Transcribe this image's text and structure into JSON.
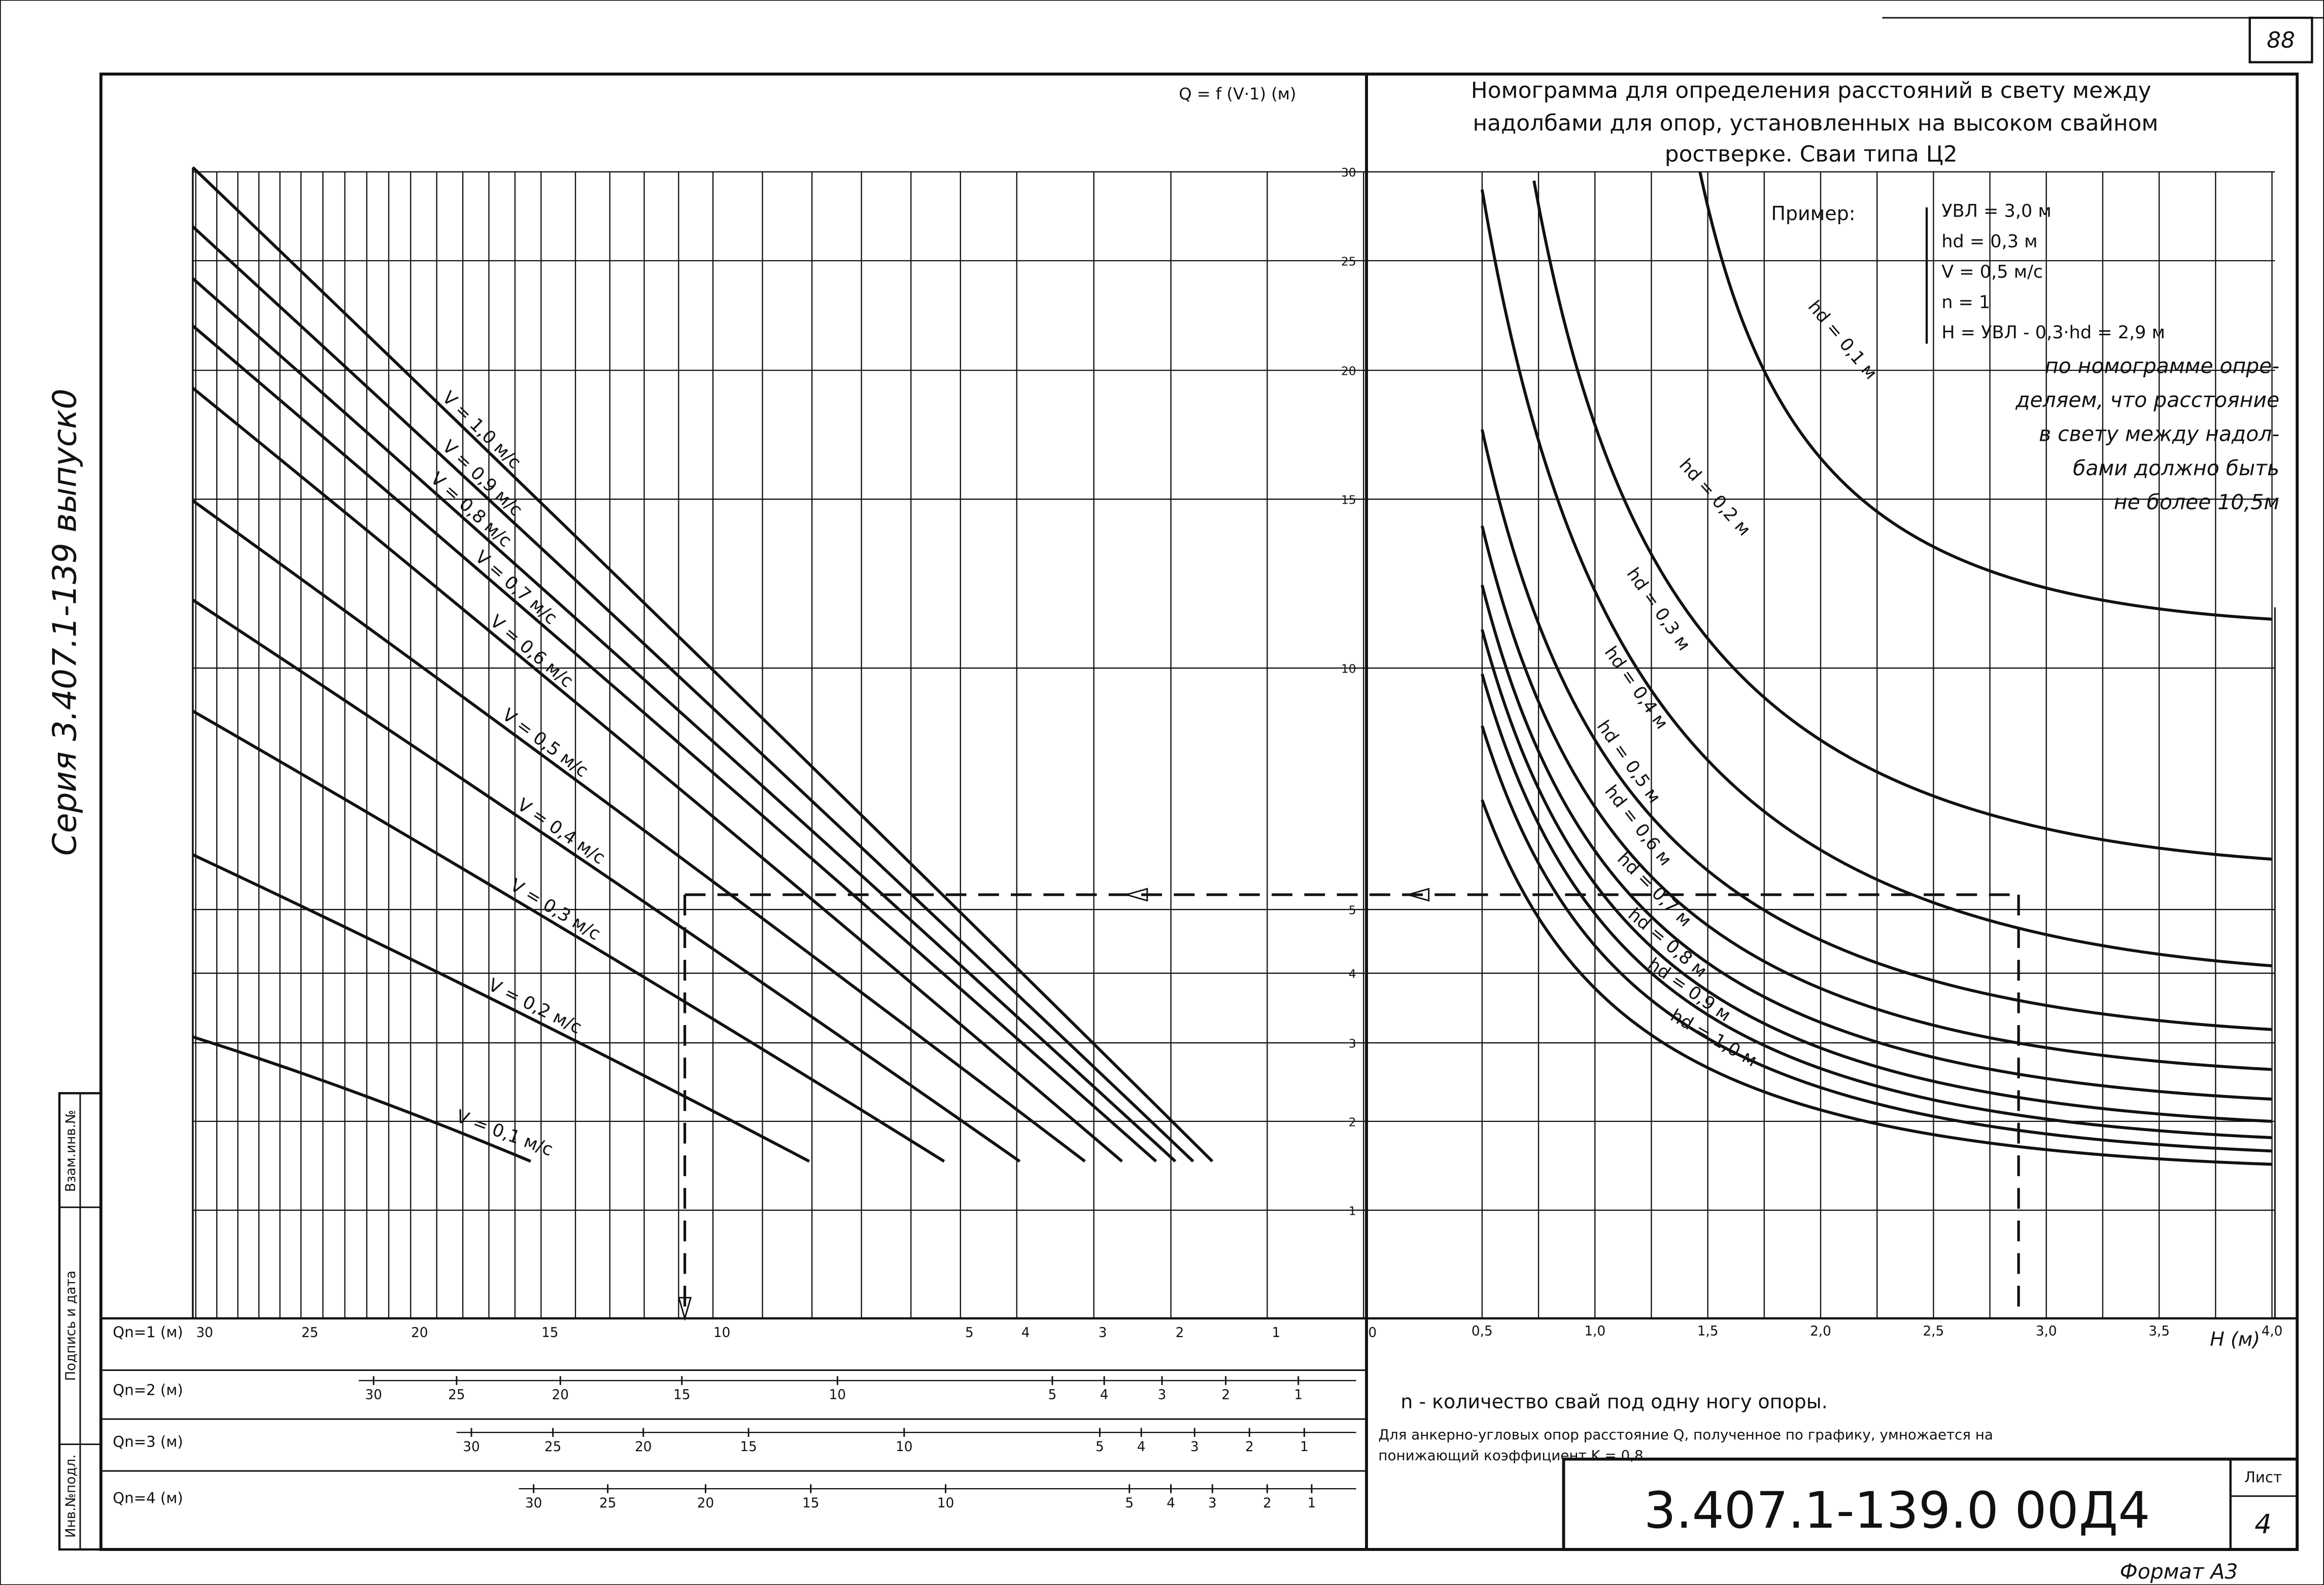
{
  "page_number": "88",
  "side_title": "Серия 3.407.1-139 выпуск0",
  "stamp": [
    "Взам.инв.№",
    "Подпись и дата",
    "Инв.№подл."
  ],
  "left_chart": {
    "formula": "Q = f (V·1) (м)",
    "y_ticks": [
      "30",
      "25",
      "20",
      "15",
      "10",
      "5",
      "4",
      "3",
      "2",
      "1"
    ],
    "curves": [
      "V = 1,0 м/с",
      "V = 0,9 м/с",
      "V = 0,8 м/с",
      "V = 0,7 м/с",
      "V = 0,6 м/с",
      "V = 0,5 м/с",
      "V = 0,4 м/с",
      "V = 0,3 м/с",
      "V = 0,2 м/с",
      "V = 0,1 м/с"
    ]
  },
  "right_chart": {
    "title_lines": [
      "Номограмма для определения расстояний в свету между",
      "надолбами для опор, установленных на высоком свайном",
      "ростверке. Сваи типа Ц2"
    ],
    "curves": [
      "hd = 0,1 м",
      "hd = 0,2 м",
      "hd = 0,3 м",
      "hd = 0,4 м",
      "hd = 0,5 м",
      "hd = 0,6 м",
      "hd = 0,7 м",
      "hd = 0,8 м",
      "hd = 0,9 м",
      "hd = 1,0 м"
    ],
    "x_ticks": [
      "0,5",
      "1,0",
      "1,5",
      "2,0",
      "2,5",
      "3,0",
      "3,5",
      "4,0"
    ],
    "x_label": "H (м)"
  },
  "example": {
    "heading": "Пример:",
    "lines": [
      "УВЛ = 3,0 м",
      "hd = 0,3 м",
      "V = 0,5 м/с",
      "n = 1",
      "H = УВЛ - 0,3·hd = 2,9 м"
    ],
    "conclusion": [
      "по номограмме опре-",
      "деляем, что расстояние",
      "в свету между надол-",
      "бами должно быть",
      "не более 10,5м"
    ]
  },
  "scales": [
    {
      "label": "Qn=1 (м)",
      "ticks": [
        "30",
        "25",
        "20",
        "15",
        "10",
        "5",
        "4",
        "3",
        "2",
        "1",
        "0"
      ]
    },
    {
      "label": "Qn=2 (м)",
      "ticks": [
        "30",
        "25",
        "20",
        "15",
        "10",
        "5",
        "4",
        "3",
        "2",
        "1"
      ]
    },
    {
      "label": "Qn=3 (м)",
      "ticks": [
        "30",
        "25",
        "20",
        "15",
        "10",
        "5",
        "4",
        "3",
        "2",
        "1"
      ]
    },
    {
      "label": "Qn=4 (м)",
      "ticks": [
        "30",
        "25",
        "20",
        "15",
        "10",
        "5",
        "4",
        "3",
        "2",
        "1"
      ]
    }
  ],
  "notes": [
    "n - количество свай под одну ногу опоры.",
    "Для анкерно-угловых опор расстояние Q, полученное по графику, умножается на",
    "понижающий коэффициент K = 0,8"
  ],
  "code": "3.407.1-139.0 00Д4",
  "sheet_label": "Лист",
  "sheet": "4",
  "format": "Формат А3"
}
